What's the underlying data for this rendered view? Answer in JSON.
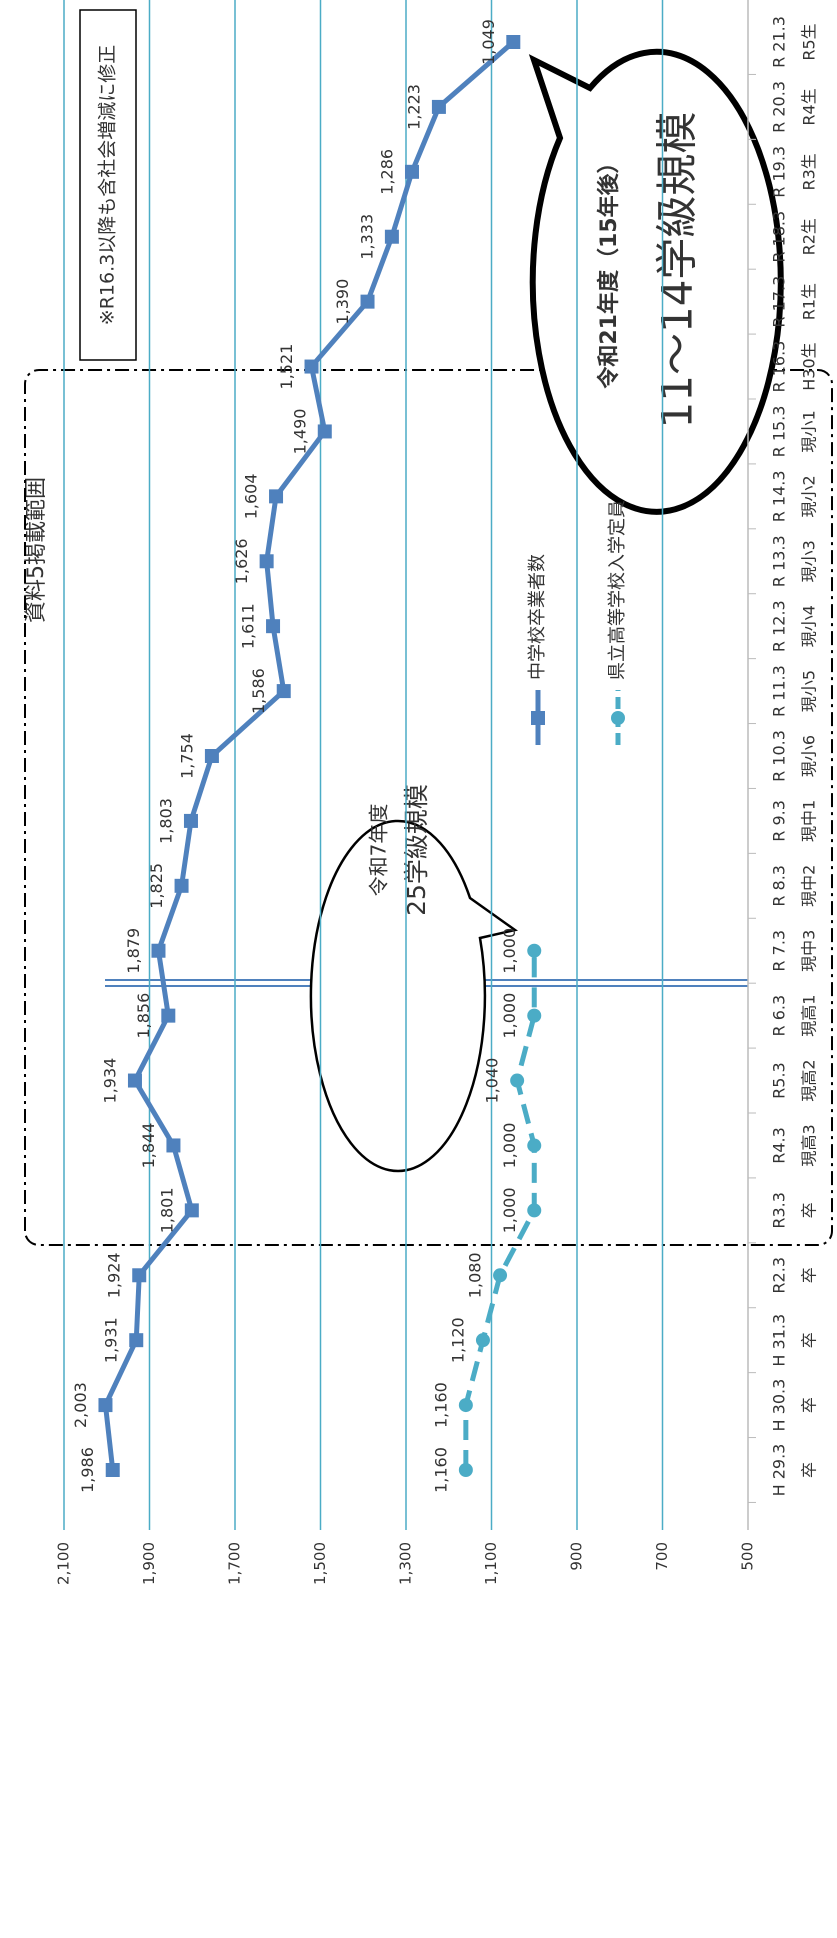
{
  "chart_data": {
    "type": "line",
    "title": "資料5掲載範囲",
    "annotations": [
      "※R16.3以降も含社会増減に修正",
      "令和7年度",
      "25学級規模",
      "令和21年度（15年後）",
      "11～14学級規模"
    ],
    "categories": [
      [
        "H 29.3",
        "卒"
      ],
      [
        "H 30.3",
        "卒"
      ],
      [
        "H 31.3",
        "卒"
      ],
      [
        "R2.3",
        "卒"
      ],
      [
        "R3.3",
        "卒"
      ],
      [
        "R4.3",
        "現高3"
      ],
      [
        "R5.3",
        "現高2"
      ],
      [
        "R 6.3",
        "現高1"
      ],
      [
        "R 7.3",
        "現中3"
      ],
      [
        "R 8.3",
        "現中2"
      ],
      [
        "R 9.3",
        "現中1"
      ],
      [
        "R 10.3",
        "現小6"
      ],
      [
        "R 11.3",
        "現小5"
      ],
      [
        "R 12.3",
        "現小4"
      ],
      [
        "R 13.3",
        "現小3"
      ],
      [
        "R 14.3",
        "現小2"
      ],
      [
        "R 15.3",
        "現小1"
      ],
      [
        "R 16.3",
        "H30生"
      ],
      [
        "R 17.3",
        "R1生"
      ],
      [
        "R 18.3",
        "R2生"
      ],
      [
        "R 19.3",
        "R3生"
      ],
      [
        "R 20.3",
        "R4生"
      ],
      [
        "R 21.3",
        "R5生"
      ]
    ],
    "series": [
      {
        "name": "中学校卒業者数",
        "color": "#4f81bd",
        "marker": "square",
        "values": [
          1986,
          2003,
          1931,
          1924,
          1801,
          1844,
          1934,
          1856,
          1879,
          1825,
          1803,
          1754,
          1586,
          1611,
          1626,
          1604,
          1490,
          1521,
          1390,
          1333,
          1286,
          1223,
          1049
        ],
        "value_labels": [
          "1,986",
          "2,003",
          "1,931",
          "1,924",
          "1,801",
          "1,844",
          "1,934",
          "1,856",
          "1,879",
          "1,825",
          "1,803",
          "1,754",
          "1,586",
          "1,611",
          "1,626",
          "1,604",
          "1,490",
          "1,521",
          "1,390",
          "1,333",
          "1,286",
          "1,223",
          "1,049"
        ]
      },
      {
        "name": "県立高等学校入学定員",
        "color": "#4bacc6",
        "marker": "circle",
        "dashed": true,
        "values": [
          1160,
          1160,
          1120,
          1080,
          1000,
          1000,
          1040,
          1000,
          1000,
          null,
          null,
          null,
          null,
          null,
          null,
          null,
          null,
          null,
          null,
          null,
          null,
          null,
          null
        ],
        "value_labels": [
          "1,160",
          "1,160",
          "1,120",
          "1,080",
          "1,000",
          "1,000",
          "1,040",
          "1,000",
          "1,000",
          null,
          null,
          null,
          null,
          null,
          null,
          null,
          null,
          null,
          null,
          null,
          null,
          null,
          null
        ]
      }
    ],
    "ylim": [
      500,
      2100
    ],
    "yticks": [
      500,
      700,
      900,
      {
        "value": 1100,
        "label": "1,100"
      },
      {
        "value": 1300,
        "label": "1,300"
      },
      {
        "value": 1500,
        "label": "1,500"
      },
      {
        "value": 1700,
        "label": "1,700"
      },
      {
        "value": 1900,
        "label": "1,900"
      },
      {
        "value": 2100,
        "label": "2,100"
      }
    ],
    "grid": true,
    "grid_color": "#4bacc6"
  }
}
